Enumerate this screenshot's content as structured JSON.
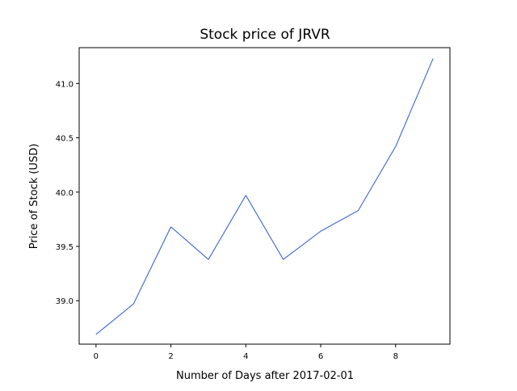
{
  "chart_data": {
    "type": "line",
    "title": "Stock price of JRVR",
    "xlabel": "Number of Days after 2017-02-01",
    "ylabel": "Price of Stock (USD)",
    "x": [
      0,
      1,
      2,
      3,
      4,
      5,
      6,
      7,
      8,
      9
    ],
    "series": [
      {
        "values": [
          38.69,
          38.97,
          39.68,
          39.38,
          39.97,
          39.38,
          39.64,
          39.83,
          40.42,
          41.23
        ],
        "color": "#4c72d0"
      }
    ],
    "xlim": [
      -0.45,
      9.45
    ],
    "ylim": [
      38.6,
      41.33
    ],
    "xticks": [
      0,
      2,
      4,
      6,
      8
    ],
    "xtick_labels": [
      "0",
      "2",
      "4",
      "6",
      "8"
    ],
    "yticks": [
      39.0,
      39.5,
      40.0,
      40.5,
      41.0
    ],
    "ytick_labels": [
      "39.0",
      "39.5",
      "40.0",
      "40.5",
      "41.0"
    ],
    "grid": false,
    "legend": "none"
  }
}
